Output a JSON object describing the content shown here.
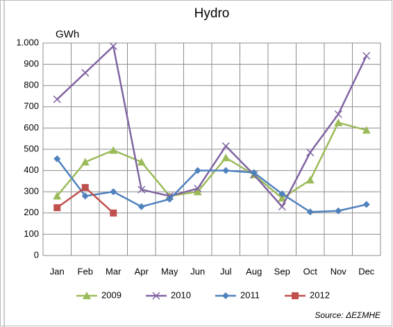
{
  "chart_data": {
    "type": "line",
    "title": "Hydro",
    "y_unit": "GWh",
    "source": "Source: ΔΕΣΜΗΕ",
    "categories": [
      "Jan",
      "Feb",
      "Mar",
      "Apr",
      "May",
      "Jun",
      "Jul",
      "Aug",
      "Sep",
      "Oct",
      "Nov",
      "Dec"
    ],
    "series": [
      {
        "name": "2009",
        "color": "#9bbb59",
        "marker": "triangle",
        "values": [
          280,
          440,
          495,
          440,
          280,
          300,
          460,
          380,
          270,
          355,
          625,
          590
        ]
      },
      {
        "name": "2010",
        "color": "#8064a2",
        "marker": "x",
        "values": [
          735,
          860,
          985,
          310,
          280,
          315,
          515,
          380,
          230,
          485,
          665,
          940
        ]
      },
      {
        "name": "2011",
        "color": "#4f81bd",
        "marker": "diamond",
        "values": [
          455,
          280,
          300,
          230,
          265,
          400,
          400,
          390,
          290,
          205,
          210,
          240
        ]
      },
      {
        "name": "2012",
        "color": "#c0504d",
        "marker": "square",
        "values": [
          225,
          320,
          200,
          null,
          null,
          null,
          null,
          null,
          null,
          null,
          null,
          null
        ]
      }
    ],
    "ylim": [
      0,
      1000
    ],
    "yticks": [
      0,
      100,
      200,
      300,
      400,
      500,
      600,
      700,
      800,
      900,
      {
        "value": 1000,
        "label": "1.000"
      }
    ],
    "grid": true,
    "legend": "bottom"
  }
}
